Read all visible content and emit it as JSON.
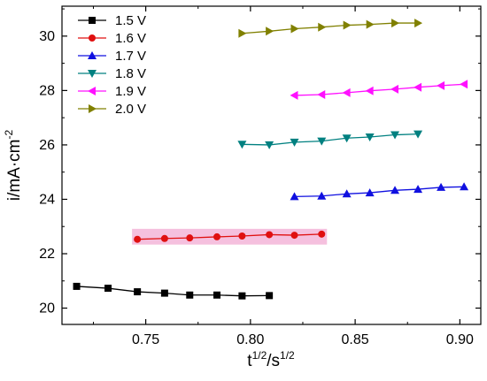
{
  "chart_data": {
    "type": "line",
    "title": "",
    "xlabel": {
      "base": "t",
      "sup1": "1/2",
      "mid": "/s",
      "sup2": "1/2"
    },
    "ylabel": {
      "base": "i/mA·cm",
      "sup": "-2"
    },
    "xlim": [
      0.71,
      0.91
    ],
    "ylim": [
      19.4,
      31.1
    ],
    "xticks": [
      0.75,
      0.8,
      0.85,
      0.9
    ],
    "xtick_labels": [
      "0.75",
      "0.80",
      "0.85",
      "0.90"
    ],
    "yticks": [
      20,
      22,
      24,
      26,
      28,
      30
    ],
    "ytick_labels": [
      "20",
      "22",
      "24",
      "26",
      "28",
      "30"
    ],
    "grid": false,
    "legend_position": "top-left",
    "series": [
      {
        "name": "1.5 V",
        "color": "#000000",
        "marker": "square",
        "x": [
          0.717,
          0.732,
          0.746,
          0.759,
          0.771,
          0.784,
          0.796,
          0.809
        ],
        "y": [
          20.8,
          20.73,
          20.6,
          20.55,
          20.48,
          20.48,
          20.45,
          20.46
        ]
      },
      {
        "name": "1.6 V",
        "color": "#e01010",
        "marker": "circle",
        "highlight": "#f3b0d6",
        "x": [
          0.746,
          0.759,
          0.771,
          0.784,
          0.796,
          0.809,
          0.821,
          0.834
        ],
        "y": [
          22.53,
          22.56,
          22.58,
          22.62,
          22.65,
          22.7,
          22.68,
          22.72
        ]
      },
      {
        "name": "1.7 V",
        "color": "#1010e0",
        "marker": "triangle-up",
        "x": [
          0.821,
          0.834,
          0.846,
          0.857,
          0.869,
          0.88,
          0.891,
          0.902
        ],
        "y": [
          24.1,
          24.12,
          24.2,
          24.24,
          24.33,
          24.37,
          24.44,
          24.46
        ]
      },
      {
        "name": "1.8 V",
        "color": "#008080",
        "marker": "triangle-down",
        "x": [
          0.796,
          0.809,
          0.821,
          0.834,
          0.846,
          0.857,
          0.869,
          0.88
        ],
        "y": [
          26.02,
          26.0,
          26.1,
          26.14,
          26.25,
          26.29,
          26.37,
          26.4
        ]
      },
      {
        "name": "1.9 V",
        "color": "#ff10ff",
        "marker": "triangle-left",
        "x": [
          0.821,
          0.834,
          0.846,
          0.857,
          0.869,
          0.88,
          0.891,
          0.902
        ],
        "y": [
          27.82,
          27.85,
          27.92,
          27.99,
          28.05,
          28.12,
          28.18,
          28.23
        ]
      },
      {
        "name": "2.0 V",
        "color": "#808000",
        "marker": "triangle-right",
        "x": [
          0.796,
          0.809,
          0.821,
          0.834,
          0.846,
          0.857,
          0.869,
          0.88
        ],
        "y": [
          30.1,
          30.18,
          30.27,
          30.33,
          30.4,
          30.43,
          30.48,
          30.48
        ]
      }
    ]
  }
}
